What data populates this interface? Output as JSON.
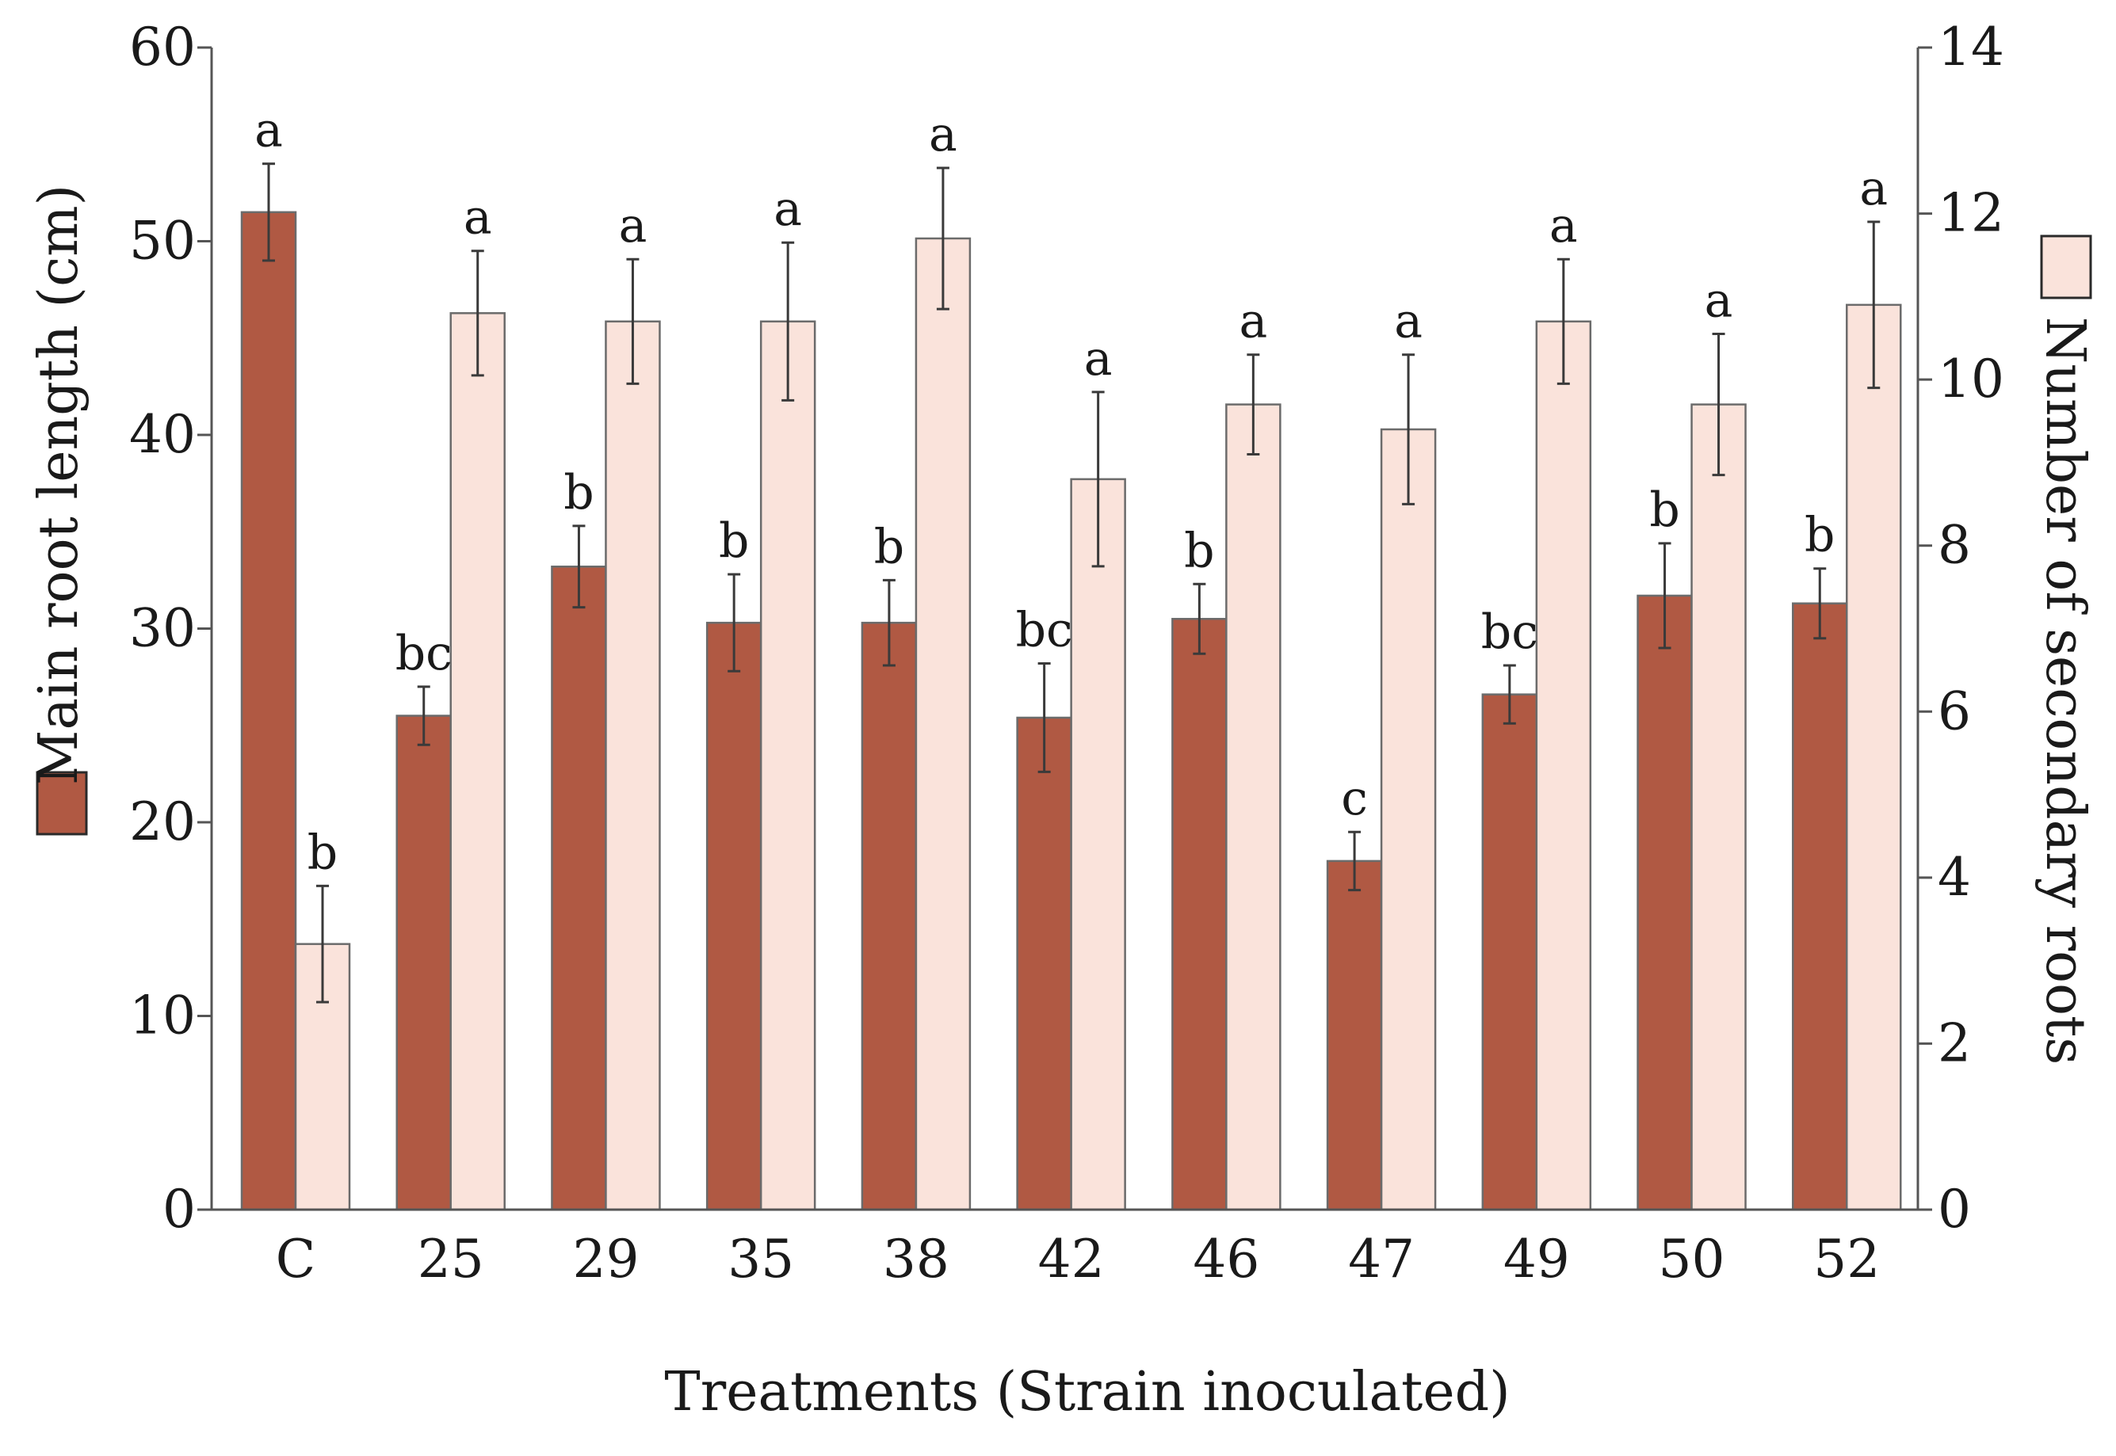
{
  "chart_data": {
    "type": "bar",
    "title": "",
    "xlabel": "Treatments (Strain inoculated)",
    "categories": [
      "C",
      "25",
      "29",
      "35",
      "38",
      "42",
      "46",
      "47",
      "49",
      "50",
      "52"
    ],
    "y_left": {
      "label": "Main root length (cm)",
      "lim": [
        0,
        60
      ],
      "ticks": [
        "0",
        "10",
        "20",
        "30",
        "40",
        "50",
        "60"
      ]
    },
    "y_right": {
      "label": "Number of secondary roots",
      "lim": [
        0,
        14
      ],
      "ticks": [
        "0",
        "2",
        "4",
        "6",
        "8",
        "10",
        "12",
        "14"
      ]
    },
    "series": [
      {
        "name": "Main root length (cm)",
        "axis": "left",
        "color": "#b05943",
        "values": [
          51.5,
          25.5,
          33.2,
          30.3,
          30.3,
          25.4,
          30.5,
          18.0,
          26.6,
          31.7,
          31.3
        ],
        "errors": [
          2.5,
          1.5,
          2.1,
          2.5,
          2.2,
          2.8,
          1.8,
          1.5,
          1.5,
          2.7,
          1.8
        ],
        "significance": [
          "a",
          "bc",
          "b",
          "b",
          "b",
          "bc",
          "b",
          "c",
          "bc",
          "b",
          "b"
        ]
      },
      {
        "name": "Number of secondary roots",
        "axis": "right",
        "color": "#fae3db",
        "values": [
          3.2,
          10.8,
          10.7,
          10.7,
          11.7,
          8.8,
          9.7,
          9.4,
          10.7,
          9.7,
          10.9
        ],
        "errors": [
          0.7,
          0.75,
          0.75,
          0.95,
          0.85,
          1.05,
          0.6,
          0.9,
          0.75,
          0.85,
          1.0
        ],
        "significance": [
          "b",
          "a",
          "a",
          "a",
          "a",
          "a",
          "a",
          "a",
          "a",
          "a",
          "a"
        ]
      }
    ],
    "legend": [
      {
        "label": "Main root length (cm)",
        "color": "#b05943",
        "position": "left"
      },
      {
        "label": "Number of secondary roots",
        "color": "#fae3db",
        "position": "right"
      }
    ]
  }
}
